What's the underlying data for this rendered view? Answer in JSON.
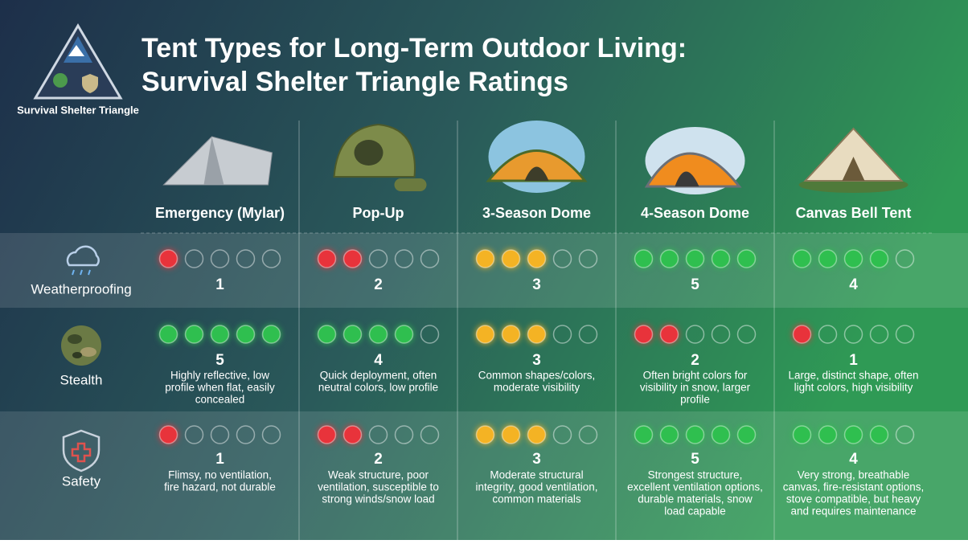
{
  "logo": {
    "label": "Survival Shelter Triangle"
  },
  "header": {
    "title_lines": [
      "Tent Types for Long-Term Outdoor Living:",
      "Survival Shelter Triangle Ratings"
    ]
  },
  "columns": [
    "Emergency (Mylar)",
    "Pop-Up",
    "3-Season Dome",
    "4-Season Dome",
    "Canvas Bell Tent"
  ],
  "rating_max": 5,
  "rating_colors": [
    "#e8333b",
    "#e8333b",
    "#f4b324",
    "#2fbf4f",
    "#2fbf4f"
  ],
  "rows": [
    {
      "label": "Weatherproofing",
      "ratings": [
        1,
        2,
        3,
        5,
        4
      ]
    },
    {
      "label": "Stealth",
      "ratings": [
        5,
        4,
        3,
        2,
        1
      ],
      "notes": [
        [
          "Highly reflective, low",
          "profile when flat, easily",
          "concealed"
        ],
        [
          "Quick deployment, often",
          "neutral colors, low profile"
        ],
        [
          "Common shapes/colors,",
          "moderate visibility"
        ],
        [
          "Often bright colors for",
          "visibility in snow, larger",
          "profile"
        ],
        [
          "Large, distinct shape, often",
          "light colors, high visibility"
        ]
      ]
    },
    {
      "label": "Safety",
      "ratings": [
        1,
        2,
        3,
        5,
        4
      ],
      "notes": [
        [
          "Flimsy, no ventilation,",
          "fire hazard, not durable"
        ],
        [
          "Weak structure, poor",
          "ventilation, susceptible to",
          "strong winds/snow load"
        ],
        [
          "Moderate structural",
          "integrity, good ventilation,",
          "common materials"
        ],
        [
          "Strongest structure,",
          "excellent ventilation options,",
          "durable materials, snow",
          "load capable"
        ],
        [
          "Very strong, breathable",
          "canvas, fire-resistant options,",
          "stove compatible, but heavy",
          "and requires maintenance"
        ]
      ]
    }
  ]
}
